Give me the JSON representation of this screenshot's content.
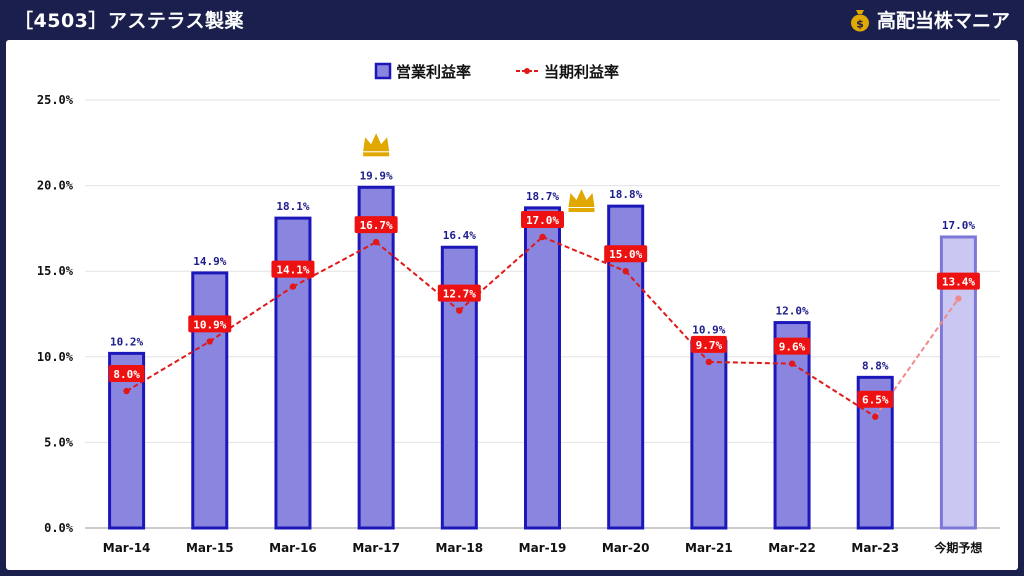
{
  "header": {
    "title": "［4503］アステラス製薬",
    "brand": "高配当株マニア",
    "brand_icon": "money-bag-icon"
  },
  "colors": {
    "background": "#1a1f4e",
    "bar_fill": "#8a86e0",
    "bar_stroke": "#1c17b8",
    "forecast_fill": "#cac8f2",
    "forecast_stroke": "#7c78d8",
    "line": "#e01818",
    "label_bg": "#ee1111",
    "crown": "#e0a800"
  },
  "chart_data": {
    "type": "bar",
    "categories": [
      "Mar-14",
      "Mar-15",
      "Mar-16",
      "Mar-17",
      "Mar-18",
      "Mar-19",
      "Mar-20",
      "Mar-21",
      "Mar-22",
      "Mar-23",
      "今期予想"
    ],
    "series": [
      {
        "name": "営業利益率",
        "kind": "bar",
        "values": [
          10.2,
          14.9,
          18.1,
          19.9,
          16.4,
          18.7,
          18.8,
          10.9,
          12.0,
          8.8,
          17.0
        ],
        "labels": [
          "10.2%",
          "14.9%",
          "18.1%",
          "19.9%",
          "16.4%",
          "18.7%",
          "18.8%",
          "10.9%",
          "12.0%",
          "8.8%",
          "17.0%"
        ]
      },
      {
        "name": "当期利益率",
        "kind": "line",
        "values": [
          8.0,
          10.9,
          14.1,
          16.7,
          12.7,
          17.0,
          15.0,
          9.7,
          9.6,
          6.5,
          13.4
        ],
        "labels": [
          "8.0%",
          "10.9%",
          "14.1%",
          "16.7%",
          "12.7%",
          "17.0%",
          "15.0%",
          "9.7%",
          "9.6%",
          "6.5%",
          "13.4%"
        ]
      }
    ],
    "forecast_index": 10,
    "crowns": [
      {
        "series": "営業利益率",
        "index": 3,
        "icon": "crown-icon"
      },
      {
        "series": "当期利益率",
        "index": 5,
        "icon": "crown-icon"
      }
    ],
    "ylim": [
      0,
      25
    ],
    "yticks": [
      0,
      5,
      10,
      15,
      20,
      25
    ],
    "ytick_labels": [
      "0.0%",
      "5.0%",
      "10.0%",
      "15.0%",
      "20.0%",
      "25.0%"
    ],
    "grid": true,
    "legend": "top-center"
  }
}
